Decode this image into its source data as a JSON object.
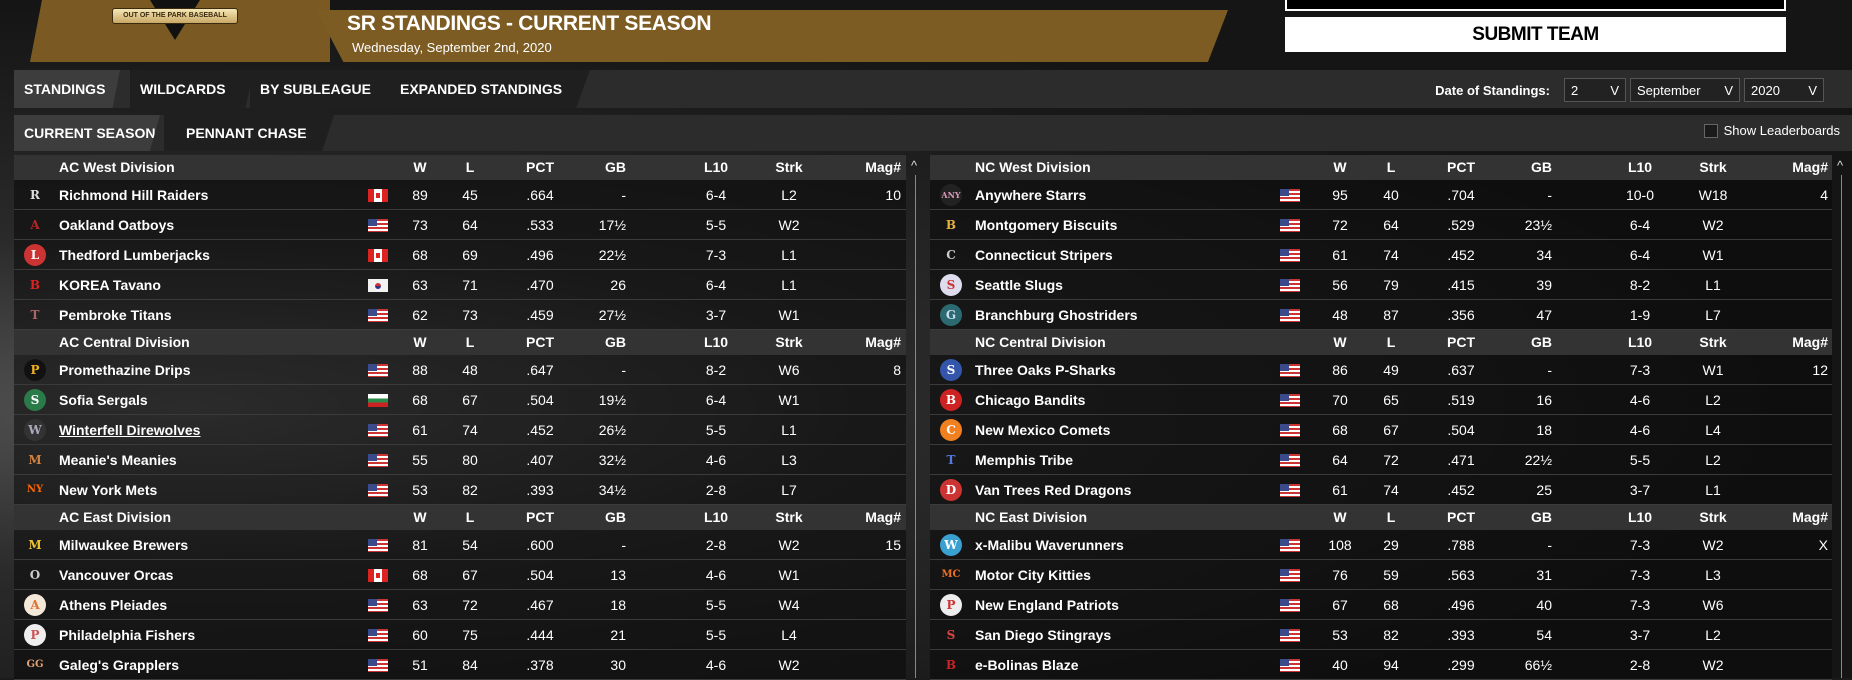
{
  "logo_text": "OUT OF THE PARK BASEBALL",
  "header": {
    "title": "SR STANDINGS - CURRENT SEASON",
    "date": "Wednesday, September 2nd, 2020",
    "submit": "SUBMIT TEAM"
  },
  "tabs": [
    "STANDINGS",
    "WILDCARDS",
    "BY SUBLEAGUE",
    "EXPANDED STANDINGS"
  ],
  "subtabs": [
    "CURRENT SEASON",
    "PENNANT CHASE"
  ],
  "date_of_standings": {
    "label": "Date of Standings:",
    "day": "2",
    "month": "September",
    "year": "2020",
    "chevron": "V"
  },
  "show_leaderboards": "Show Leaderboards",
  "columns": [
    "W",
    "L",
    "PCT",
    "GB",
    "L10",
    "Strk",
    "Mag#"
  ],
  "scroll_up": "^",
  "tables": [
    {
      "divisions": [
        {
          "name": "AC West Division",
          "teams": [
            {
              "logo": "R",
              "color": "#ddd",
              "bg": "transparent",
              "team": "Richmond Hill Raiders",
              "flag": "ca",
              "w": "89",
              "l": "45",
              "pct": ".664",
              "gb": "-",
              "l10": "6-4",
              "strk": "L2",
              "mag": "10"
            },
            {
              "logo": "A",
              "color": "#b22",
              "bg": "transparent",
              "team": "Oakland Oatboys",
              "flag": "us",
              "w": "73",
              "l": "64",
              "pct": ".533",
              "gb": "17½",
              "l10": "5-5",
              "strk": "W2",
              "mag": ""
            },
            {
              "logo": "L",
              "color": "#fff",
              "bg": "#c33",
              "team": "Thedford Lumberjacks",
              "flag": "ca",
              "w": "68",
              "l": "69",
              "pct": ".496",
              "gb": "22½",
              "l10": "7-3",
              "strk": "L1",
              "mag": ""
            },
            {
              "logo": "B",
              "color": "#d22",
              "bg": "transparent",
              "team": "KOREA Tavano",
              "flag": "kr",
              "w": "63",
              "l": "71",
              "pct": ".470",
              "gb": "26",
              "l10": "6-4",
              "strk": "L1",
              "mag": ""
            },
            {
              "logo": "T",
              "color": "#a66",
              "bg": "transparent",
              "team": "Pembroke Titans",
              "flag": "us",
              "w": "62",
              "l": "73",
              "pct": ".459",
              "gb": "27½",
              "l10": "3-7",
              "strk": "W1",
              "mag": ""
            }
          ]
        },
        {
          "name": "AC Central Division",
          "teams": [
            {
              "logo": "P",
              "color": "#f0b020",
              "bg": "#111",
              "team": "Promethazine Drips",
              "flag": "us",
              "w": "88",
              "l": "48",
              "pct": ".647",
              "gb": "-",
              "l10": "8-2",
              "strk": "W6",
              "mag": "8"
            },
            {
              "logo": "S",
              "color": "#fff",
              "bg": "#2a7a4a",
              "team": "Sofia Sergals",
              "flag": "bg",
              "w": "68",
              "l": "67",
              "pct": ".504",
              "gb": "19½",
              "l10": "6-4",
              "strk": "W1",
              "mag": ""
            },
            {
              "logo": "W",
              "color": "#aab",
              "bg": "#333",
              "team": "Winterfell Direwolves",
              "flag": "us",
              "w": "61",
              "l": "74",
              "pct": ".452",
              "gb": "26½",
              "l10": "5-5",
              "strk": "L1",
              "mag": "",
              "u": true
            },
            {
              "logo": "M",
              "color": "#d08040",
              "bg": "transparent",
              "team": "Meanie's Meanies",
              "flag": "us",
              "w": "55",
              "l": "80",
              "pct": ".407",
              "gb": "32½",
              "l10": "4-6",
              "strk": "L3",
              "mag": ""
            },
            {
              "logo": "NY",
              "color": "#f60",
              "bg": "transparent",
              "team": "New York Mets",
              "flag": "us",
              "w": "53",
              "l": "82",
              "pct": ".393",
              "gb": "34½",
              "l10": "2-8",
              "strk": "L7",
              "mag": ""
            }
          ]
        },
        {
          "name": "AC East Division",
          "teams": [
            {
              "logo": "M",
              "color": "#e8c030",
              "bg": "transparent",
              "team": "Milwaukee Brewers",
              "flag": "us",
              "w": "81",
              "l": "54",
              "pct": ".600",
              "gb": "-",
              "l10": "2-8",
              "strk": "W2",
              "mag": "15"
            },
            {
              "logo": "O",
              "color": "#ccc",
              "bg": "transparent",
              "team": "Vancouver Orcas",
              "flag": "ca",
              "w": "68",
              "l": "67",
              "pct": ".504",
              "gb": "13",
              "l10": "4-6",
              "strk": "W1",
              "mag": ""
            },
            {
              "logo": "A",
              "color": "#e07030",
              "bg": "#f4e8d8",
              "team": "Athens Pleiades",
              "flag": "us",
              "w": "63",
              "l": "72",
              "pct": ".467",
              "gb": "18",
              "l10": "5-5",
              "strk": "W4",
              "mag": ""
            },
            {
              "logo": "P",
              "color": "#c55",
              "bg": "#eee",
              "team": "Philadelphia Fishers",
              "flag": "us",
              "w": "60",
              "l": "75",
              "pct": ".444",
              "gb": "21",
              "l10": "5-5",
              "strk": "L4",
              "mag": ""
            },
            {
              "logo": "GG",
              "color": "#e0a070",
              "bg": "transparent",
              "team": "Galeg's Grapplers",
              "flag": "us",
              "w": "51",
              "l": "84",
              "pct": ".378",
              "gb": "30",
              "l10": "4-6",
              "strk": "W2",
              "mag": ""
            }
          ]
        }
      ]
    },
    {
      "divisions": [
        {
          "name": "NC West Division",
          "teams": [
            {
              "logo": "ANY",
              "color": "#d9b",
              "bg": "#222",
              "team": "Anywhere Starrs",
              "flag": "us",
              "w": "95",
              "l": "40",
              "pct": ".704",
              "gb": "-",
              "l10": "10-0",
              "strk": "W18",
              "mag": "4"
            },
            {
              "logo": "B",
              "color": "#e8b040",
              "bg": "transparent",
              "team": "Montgomery Biscuits",
              "flag": "us",
              "w": "72",
              "l": "64",
              "pct": ".529",
              "gb": "23½",
              "l10": "6-4",
              "strk": "W2",
              "mag": ""
            },
            {
              "logo": "C",
              "color": "#ccc",
              "bg": "transparent",
              "team": "Connecticut Stripers",
              "flag": "us",
              "w": "61",
              "l": "74",
              "pct": ".452",
              "gb": "34",
              "l10": "6-4",
              "strk": "W1",
              "mag": ""
            },
            {
              "logo": "S",
              "color": "#c33",
              "bg": "#dde",
              "team": "Seattle Slugs",
              "flag": "us",
              "w": "56",
              "l": "79",
              "pct": ".415",
              "gb": "39",
              "l10": "8-2",
              "strk": "L1",
              "mag": ""
            },
            {
              "logo": "G",
              "color": "#cde",
              "bg": "#2a6a70",
              "team": "Branchburg Ghostriders",
              "flag": "us",
              "w": "48",
              "l": "87",
              "pct": ".356",
              "gb": "47",
              "l10": "1-9",
              "strk": "L7",
              "mag": ""
            }
          ]
        },
        {
          "name": "NC Central Division",
          "teams": [
            {
              "logo": "S",
              "color": "#fff",
              "bg": "#3355aa",
              "team": "Three Oaks P-Sharks",
              "flag": "us",
              "w": "86",
              "l": "49",
              "pct": ".637",
              "gb": "-",
              "l10": "7-3",
              "strk": "W1",
              "mag": "12"
            },
            {
              "logo": "B",
              "color": "#fff",
              "bg": "#c22",
              "team": "Chicago Bandits",
              "flag": "us",
              "w": "70",
              "l": "65",
              "pct": ".519",
              "gb": "16",
              "l10": "4-6",
              "strk": "L2",
              "mag": ""
            },
            {
              "logo": "C",
              "color": "#fff",
              "bg": "#f08020",
              "team": "New Mexico Comets",
              "flag": "us",
              "w": "68",
              "l": "67",
              "pct": ".504",
              "gb": "18",
              "l10": "4-6",
              "strk": "L4",
              "mag": ""
            },
            {
              "logo": "T",
              "color": "#5577dd",
              "bg": "transparent",
              "team": "Memphis Tribe",
              "flag": "us",
              "w": "64",
              "l": "72",
              "pct": ".471",
              "gb": "22½",
              "l10": "5-5",
              "strk": "L2",
              "mag": ""
            },
            {
              "logo": "D",
              "color": "#fff",
              "bg": "#c33",
              "team": "Van Trees Red Dragons",
              "flag": "us",
              "w": "61",
              "l": "74",
              "pct": ".452",
              "gb": "25",
              "l10": "3-7",
              "strk": "L1",
              "mag": ""
            }
          ]
        },
        {
          "name": "NC East Division",
          "teams": [
            {
              "logo": "W",
              "color": "#fff",
              "bg": "#3aa0d0",
              "team": "x-Malibu Waverunners",
              "flag": "us",
              "w": "108",
              "l": "29",
              "pct": ".788",
              "gb": "-",
              "l10": "7-3",
              "strk": "W2",
              "mag": "X"
            },
            {
              "logo": "MC",
              "color": "#f07020",
              "bg": "transparent",
              "team": "Motor City Kitties",
              "flag": "us",
              "w": "76",
              "l": "59",
              "pct": ".563",
              "gb": "31",
              "l10": "7-3",
              "strk": "L3",
              "mag": ""
            },
            {
              "logo": "P",
              "color": "#c33",
              "bg": "#eee",
              "team": "New England Patriots",
              "flag": "us",
              "w": "67",
              "l": "68",
              "pct": ".496",
              "gb": "40",
              "l10": "7-3",
              "strk": "W6",
              "mag": ""
            },
            {
              "logo": "S",
              "color": "#d44",
              "bg": "transparent",
              "team": "San Diego Stingrays",
              "flag": "us",
              "w": "53",
              "l": "82",
              "pct": ".393",
              "gb": "54",
              "l10": "3-7",
              "strk": "L2",
              "mag": ""
            },
            {
              "logo": "B",
              "color": "#c22",
              "bg": "transparent",
              "team": "e-Bolinas Blaze",
              "flag": "us",
              "w": "40",
              "l": "94",
              "pct": ".299",
              "gb": "66½",
              "l10": "2-8",
              "strk": "W2",
              "mag": ""
            }
          ]
        }
      ]
    }
  ]
}
